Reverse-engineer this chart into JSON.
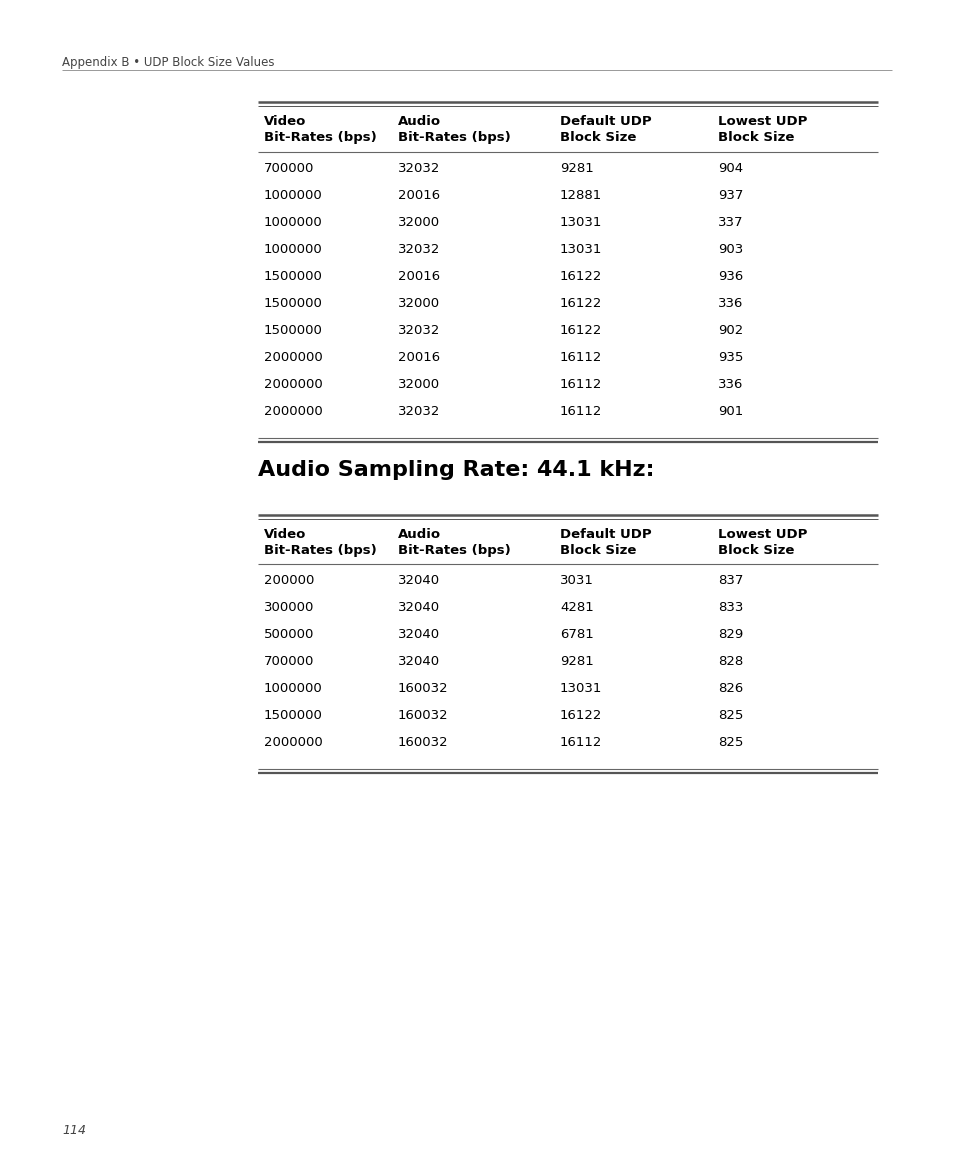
{
  "header_text": "Appendix B • UDP Block Size Values",
  "section2_title": "Audio Sampling Rate: 44.1 kHz:",
  "page_number": "114",
  "table1_headers_line1": [
    "Video",
    "Audio",
    "Default UDP",
    "Lowest UDP"
  ],
  "table1_headers_line2": [
    "Bit-Rates (bps)",
    "Bit-Rates (bps)",
    "Block Size",
    "Block Size"
  ],
  "table1_rows": [
    [
      "700000",
      "32032",
      "9281",
      "904"
    ],
    [
      "1000000",
      "20016",
      "12881",
      "937"
    ],
    [
      "1000000",
      "32000",
      "13031",
      "337"
    ],
    [
      "1000000",
      "32032",
      "13031",
      "903"
    ],
    [
      "1500000",
      "20016",
      "16122",
      "936"
    ],
    [
      "1500000",
      "32000",
      "16122",
      "336"
    ],
    [
      "1500000",
      "32032",
      "16122",
      "902"
    ],
    [
      "2000000",
      "20016",
      "16112",
      "935"
    ],
    [
      "2000000",
      "32000",
      "16112",
      "336"
    ],
    [
      "2000000",
      "32032",
      "16112",
      "901"
    ]
  ],
  "table2_headers_line1": [
    "Video",
    "Audio",
    "Default UDP",
    "Lowest UDP"
  ],
  "table2_headers_line2": [
    "Bit-Rates (bps)",
    "Bit-Rates (bps)",
    "Block Size",
    "Block Size"
  ],
  "table2_rows": [
    [
      "200000",
      "32040",
      "3031",
      "837"
    ],
    [
      "300000",
      "32040",
      "4281",
      "833"
    ],
    [
      "500000",
      "32040",
      "6781",
      "829"
    ],
    [
      "700000",
      "32040",
      "9281",
      "828"
    ],
    [
      "1000000",
      "160032",
      "13031",
      "826"
    ],
    [
      "1500000",
      "160032",
      "16122",
      "825"
    ],
    [
      "2000000",
      "160032",
      "16112",
      "825"
    ]
  ],
  "bg_color": "#ffffff",
  "text_color": "#000000",
  "line_color": "#666666",
  "thick_line_color": "#555555"
}
